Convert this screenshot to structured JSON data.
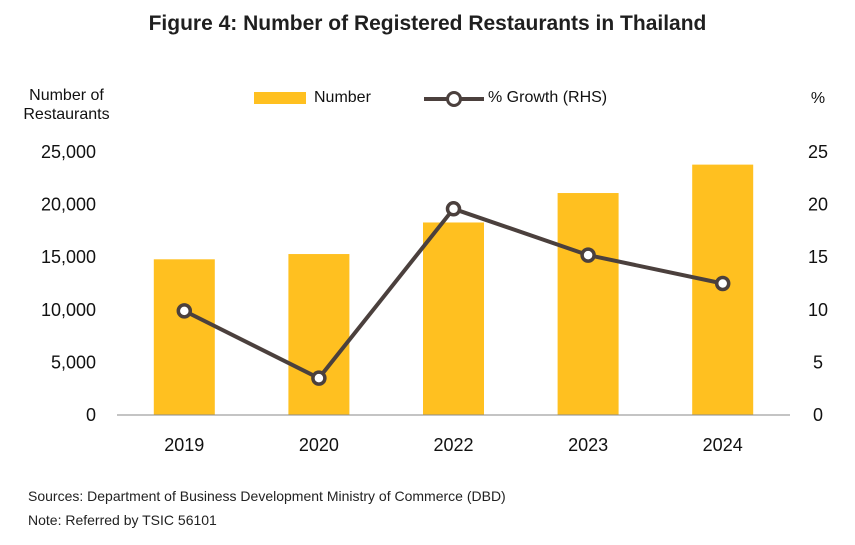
{
  "title": "Figure 4: Number of Registered Restaurants in Thailand",
  "chart_data": {
    "type": "bar",
    "title": "Figure 4: Number of Registered Restaurants in Thailand",
    "ylabel_left": "Number of Restaurants",
    "ylabel_right": "%",
    "categories": [
      "2019",
      "2020",
      "2022",
      "2023",
      "2024"
    ],
    "series": [
      {
        "name": "Number",
        "type": "bar",
        "axis": "left",
        "values": [
          14800,
          15300,
          18300,
          21100,
          23800
        ],
        "color": "#FFC020"
      },
      {
        "name": "% Growth (RHS)",
        "type": "line",
        "axis": "right",
        "values": [
          9.9,
          3.5,
          19.6,
          15.2,
          12.5
        ],
        "color": "#4B403D"
      }
    ],
    "ylim_left": [
      0,
      25000
    ],
    "ylim_right": [
      0,
      25
    ],
    "yticks_left": [
      "0",
      "5,000",
      "10,000",
      "15,000",
      "20,000",
      "25,000"
    ],
    "yticks_right": [
      "0",
      "5",
      "10",
      "15",
      "20",
      "25"
    ],
    "legend": "top-center",
    "grid": false
  },
  "footer": {
    "sources": "Sources: Department of Business Development Ministry of Commerce (DBD)",
    "note": "Note: Referred by TSIC 56101"
  }
}
